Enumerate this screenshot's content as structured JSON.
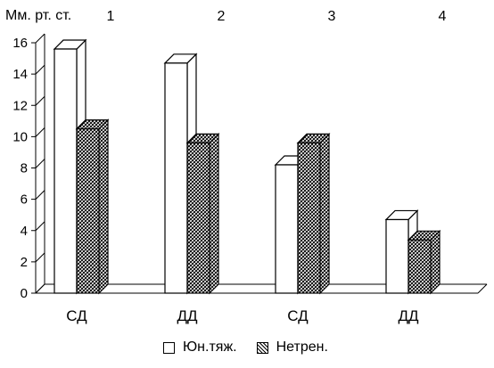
{
  "chart_data": {
    "type": "bar",
    "ylabel": "Мм. рт. ст.",
    "ylim": [
      0,
      16
    ],
    "yticks": [
      0,
      2,
      4,
      6,
      8,
      10,
      12,
      14,
      16
    ],
    "grid": false,
    "categories": [
      "СД",
      "ДД",
      "СД",
      "ДД"
    ],
    "group_labels": [
      "1",
      "2",
      "3",
      "4"
    ],
    "series": [
      {
        "name": "Юн.тяж.",
        "values": [
          15.6,
          14.7,
          8.2,
          4.7
        ],
        "fill": "white"
      },
      {
        "name": "Нетрен.",
        "values": [
          10.5,
          9.6,
          9.6,
          3.4
        ],
        "fill": "hatched"
      }
    ],
    "legend_position": "bottom"
  }
}
